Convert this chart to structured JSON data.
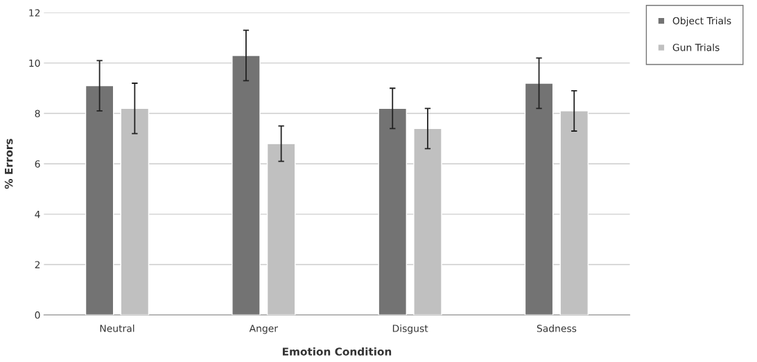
{
  "chart_data": {
    "type": "bar",
    "xlabel": "Emotion Condition",
    "ylabel": "% Errors",
    "categories": [
      "Neutral",
      "Anger",
      "Disgust",
      "Sadness"
    ],
    "series": [
      {
        "name": "Object Trials",
        "color": "#737373",
        "values": [
          9.1,
          10.3,
          8.2,
          9.2
        ],
        "errors": [
          1.0,
          1.0,
          0.8,
          1.0
        ]
      },
      {
        "name": "Gun Trials",
        "color": "#c0c0c0",
        "values": [
          8.2,
          6.8,
          7.4,
          8.1
        ],
        "errors": [
          1.0,
          0.7,
          0.8,
          0.8
        ]
      }
    ],
    "ylim": [
      0,
      12
    ],
    "yticks": [
      0,
      2,
      4,
      6,
      8,
      10,
      12
    ],
    "grid": "y",
    "legend": "right"
  }
}
